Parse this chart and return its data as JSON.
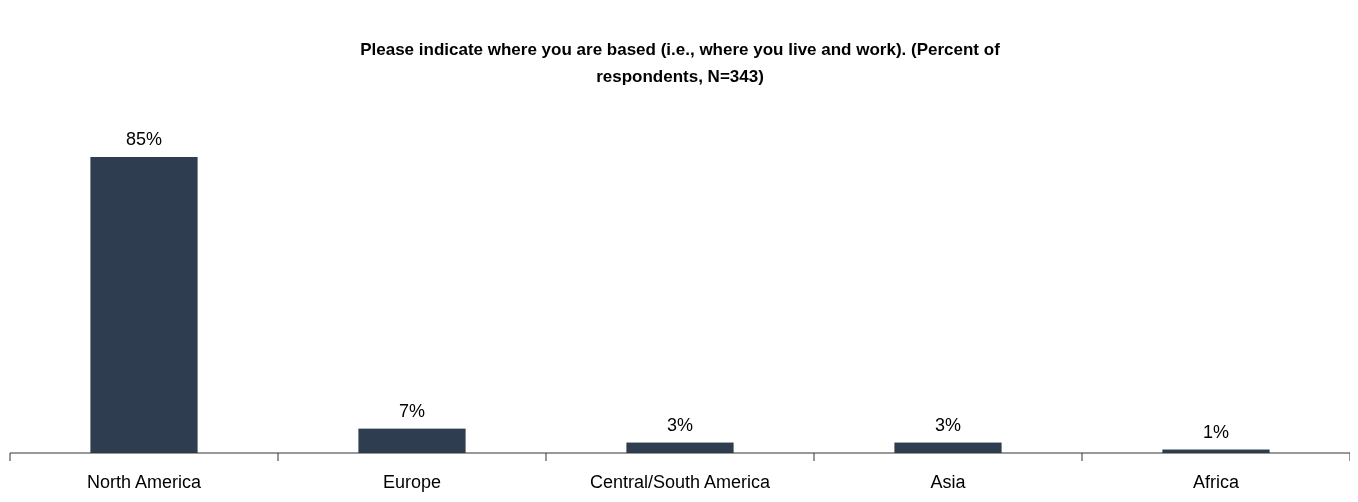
{
  "chart_data": {
    "type": "bar",
    "title": "Please indicate where you are based (i.e., where you live and work). (Percent of respondents, N=343)",
    "categories": [
      "North America",
      "Europe",
      "Central/South America",
      "Asia",
      "Africa"
    ],
    "values": [
      85,
      7,
      3,
      3,
      1
    ],
    "value_labels": [
      "85%",
      "7%",
      "3%",
      "3%",
      "1%"
    ],
    "color": "#2e3e50"
  }
}
